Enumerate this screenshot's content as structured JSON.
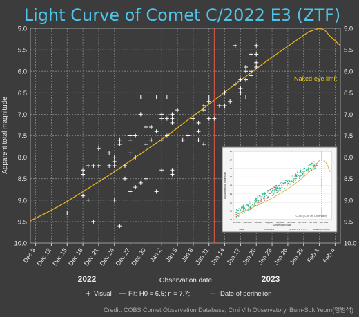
{
  "chart_data": {
    "type": "scatter",
    "title": "Light Curve of Comet C/2022 E3 (ZTF)",
    "xlabel": "Observation date",
    "ylabel": "Apparent total magnitude",
    "year_labels": [
      "2022",
      "2023"
    ],
    "x_ticks": [
      "Dec 9",
      "Dec 12",
      "Dec 15",
      "Dec 18",
      "Dec 21",
      "Dec 24",
      "Dec 27",
      "Dec 30",
      "Jan 2",
      "Jan 5",
      "Jan 8",
      "Jan 11",
      "Jan 14",
      "Jan 17",
      "Jan 20",
      "Jan 23",
      "Jan 26",
      "Jan 29",
      "Feb 1",
      "Feb 4"
    ],
    "x_tick_dates": [
      "2022-12-09",
      "2022-12-12",
      "2022-12-15",
      "2022-12-18",
      "2022-12-21",
      "2022-12-24",
      "2022-12-27",
      "2022-12-30",
      "2023-01-02",
      "2023-01-05",
      "2023-01-08",
      "2023-01-11",
      "2023-01-14",
      "2023-01-17",
      "2023-01-20",
      "2023-01-23",
      "2023-01-26",
      "2023-01-29",
      "2023-02-01",
      "2023-02-04"
    ],
    "xlim": [
      "2022-12-08",
      "2023-02-05"
    ],
    "y_ticks": [
      "5.0",
      "5.5",
      "6.0",
      "6.5",
      "7.0",
      "7.5",
      "8.0",
      "8.5",
      "9.0",
      "9.5",
      "10.0"
    ],
    "ylim": [
      10.0,
      5.0
    ],
    "y_inverted": true,
    "grid": true,
    "legend": {
      "placement": "bottom-center",
      "entries": [
        {
          "marker": "+",
          "label": "Visual"
        },
        {
          "marker": "—",
          "label": "Fit: H0 = 6.5; n = 7.7;"
        },
        {
          "marker": "--",
          "label": "Date of perihelion"
        }
      ]
    },
    "annotation": "Naked-eye limit",
    "naked_eye_limit": 6.0,
    "perihelion_date": "2023-01-12",
    "colors": {
      "background": "#3c3c3c",
      "plot_background": "#3c3c3c",
      "title": "#4fc3e8",
      "points": "#ffffff",
      "fit": "#e6b21e",
      "perihelion": "#e05a4a",
      "annotation": "#f0d020",
      "grid": "#8a8a8a"
    },
    "fit_curve": [
      {
        "x": "2022-12-08",
        "y": 9.48
      },
      {
        "x": "2022-12-11",
        "y": 9.3
      },
      {
        "x": "2022-12-14",
        "y": 9.1
      },
      {
        "x": "2022-12-17",
        "y": 8.88
      },
      {
        "x": "2022-12-20",
        "y": 8.65
      },
      {
        "x": "2022-12-23",
        "y": 8.42
      },
      {
        "x": "2022-12-26",
        "y": 8.17
      },
      {
        "x": "2022-12-29",
        "y": 7.92
      },
      {
        "x": "2023-01-01",
        "y": 7.67
      },
      {
        "x": "2023-01-04",
        "y": 7.41
      },
      {
        "x": "2023-01-07",
        "y": 7.13
      },
      {
        "x": "2023-01-10",
        "y": 6.86
      },
      {
        "x": "2023-01-13",
        "y": 6.58
      },
      {
        "x": "2023-01-16",
        "y": 6.3
      },
      {
        "x": "2023-01-19",
        "y": 6.03
      },
      {
        "x": "2023-01-22",
        "y": 5.76
      },
      {
        "x": "2023-01-25",
        "y": 5.5
      },
      {
        "x": "2023-01-28",
        "y": 5.25
      },
      {
        "x": "2023-01-30",
        "y": 5.08
      },
      {
        "x": "2023-02-01",
        "y": 5.0
      },
      {
        "x": "2023-02-02",
        "y": 5.04
      },
      {
        "x": "2023-02-03",
        "y": 5.18
      },
      {
        "x": "2023-02-05",
        "y": 5.4
      }
    ],
    "series": [
      {
        "name": "Visual",
        "points": [
          {
            "x": "2022-12-15",
            "y": 9.3
          },
          {
            "x": "2022-12-18",
            "y": 8.3
          },
          {
            "x": "2022-12-18",
            "y": 8.4
          },
          {
            "x": "2022-12-18",
            "y": 8.9
          },
          {
            "x": "2022-12-19",
            "y": 9.0
          },
          {
            "x": "2022-12-19",
            "y": 8.2
          },
          {
            "x": "2022-12-20",
            "y": 8.2
          },
          {
            "x": "2022-12-20",
            "y": 9.5
          },
          {
            "x": "2022-12-21",
            "y": 8.2
          },
          {
            "x": "2022-12-21",
            "y": 7.8
          },
          {
            "x": "2022-12-23",
            "y": 7.9
          },
          {
            "x": "2022-12-23",
            "y": 8.2
          },
          {
            "x": "2022-12-24",
            "y": 9.0
          },
          {
            "x": "2022-12-24",
            "y": 8.0
          },
          {
            "x": "2022-12-24",
            "y": 8.1
          },
          {
            "x": "2022-12-24",
            "y": 8.2
          },
          {
            "x": "2022-12-25",
            "y": 9.6
          },
          {
            "x": "2022-12-25",
            "y": 7.7
          },
          {
            "x": "2022-12-25",
            "y": 7.6
          },
          {
            "x": "2022-12-26",
            "y": 8.5
          },
          {
            "x": "2022-12-26",
            "y": 8.2
          },
          {
            "x": "2022-12-27",
            "y": 8.8
          },
          {
            "x": "2022-12-27",
            "y": 7.5
          },
          {
            "x": "2022-12-27",
            "y": 7.6
          },
          {
            "x": "2022-12-27",
            "y": 7.9
          },
          {
            "x": "2022-12-28",
            "y": 7.5
          },
          {
            "x": "2022-12-28",
            "y": 8.0
          },
          {
            "x": "2022-12-28",
            "y": 8.7
          },
          {
            "x": "2022-12-29",
            "y": 8.6
          },
          {
            "x": "2022-12-29",
            "y": 7.0
          },
          {
            "x": "2022-12-29",
            "y": 6.6
          },
          {
            "x": "2022-12-30",
            "y": 8.5
          },
          {
            "x": "2022-12-30",
            "y": 7.7
          },
          {
            "x": "2022-12-30",
            "y": 7.3
          },
          {
            "x": "2022-12-31",
            "y": 7.3
          },
          {
            "x": "2022-12-31",
            "y": 7.6
          },
          {
            "x": "2023-01-01",
            "y": 8.8
          },
          {
            "x": "2023-01-01",
            "y": 6.6
          },
          {
            "x": "2023-01-01",
            "y": 7.4
          },
          {
            "x": "2023-01-02",
            "y": 8.3
          },
          {
            "x": "2023-01-02",
            "y": 7.1
          },
          {
            "x": "2023-01-02",
            "y": 7.6
          },
          {
            "x": "2023-01-02",
            "y": 7.0
          },
          {
            "x": "2023-01-03",
            "y": 6.6
          },
          {
            "x": "2023-01-03",
            "y": 7.1
          },
          {
            "x": "2023-01-03",
            "y": 7.5
          },
          {
            "x": "2023-01-04",
            "y": 8.3
          },
          {
            "x": "2023-01-04",
            "y": 8.4
          },
          {
            "x": "2023-01-04",
            "y": 7.0
          },
          {
            "x": "2023-01-04",
            "y": 7.1
          },
          {
            "x": "2023-01-04",
            "y": 7.2
          },
          {
            "x": "2023-01-05",
            "y": 6.9
          },
          {
            "x": "2023-01-06",
            "y": 7.6
          },
          {
            "x": "2023-01-07",
            "y": 7.5
          },
          {
            "x": "2023-01-08",
            "y": 7.1
          },
          {
            "x": "2023-01-09",
            "y": 7.2
          },
          {
            "x": "2023-01-09",
            "y": 7.4
          },
          {
            "x": "2023-01-09",
            "y": 7.6
          },
          {
            "x": "2023-01-10",
            "y": 7.7
          },
          {
            "x": "2023-01-10",
            "y": 6.8
          },
          {
            "x": "2023-01-10",
            "y": 6.9
          },
          {
            "x": "2023-01-11",
            "y": 6.6
          },
          {
            "x": "2023-01-11",
            "y": 6.7
          },
          {
            "x": "2023-01-11",
            "y": 7.1
          },
          {
            "x": "2023-01-12",
            "y": 7.1
          },
          {
            "x": "2023-01-13",
            "y": 6.8
          },
          {
            "x": "2023-01-14",
            "y": 6.5
          },
          {
            "x": "2023-01-14",
            "y": 6.8
          },
          {
            "x": "2023-01-15",
            "y": 6.7
          },
          {
            "x": "2023-01-16",
            "y": 6.3
          },
          {
            "x": "2023-01-16",
            "y": 5.4
          },
          {
            "x": "2023-01-17",
            "y": 6.4
          },
          {
            "x": "2023-01-17",
            "y": 6.5
          },
          {
            "x": "2023-01-17",
            "y": 6.2
          },
          {
            "x": "2023-01-18",
            "y": 6.6
          },
          {
            "x": "2023-01-18",
            "y": 6.0
          },
          {
            "x": "2023-01-18",
            "y": 5.9
          },
          {
            "x": "2023-01-18",
            "y": 6.2
          },
          {
            "x": "2023-01-19",
            "y": 6.0
          },
          {
            "x": "2023-01-19",
            "y": 6.1
          },
          {
            "x": "2023-01-19",
            "y": 5.6
          },
          {
            "x": "2023-01-20",
            "y": 5.4
          },
          {
            "x": "2023-01-20",
            "y": 5.6
          },
          {
            "x": "2023-01-20",
            "y": 5.8
          },
          {
            "x": "2023-01-20",
            "y": 5.9
          }
        ]
      }
    ],
    "inset": {
      "ylabel": "Apparent total magnitude",
      "xlabel": "Observation date",
      "x_ticks": [
        "Mar 2022",
        "May 2022",
        "Jun 2022",
        "Aug 2022",
        "Sep 2022",
        "Nov 2022",
        "Dec 2022",
        "Feb 2023",
        "Mar 2023"
      ],
      "y_ticks": [
        "10",
        "11",
        "12",
        "13",
        "14",
        "15",
        "16",
        "17",
        "18"
      ],
      "credit": "COBS | Crni Vrh Observatory",
      "legend": [
        "Visual",
        "CCD/DSLR",
        "Fit: H0 = 6.3; n = 7.4",
        "Date of perihelion"
      ]
    },
    "credit": "Credit: COBS Comet Observation Database, Crni Vrh Observatory, Bum-Suk Yeom(염범석)"
  }
}
